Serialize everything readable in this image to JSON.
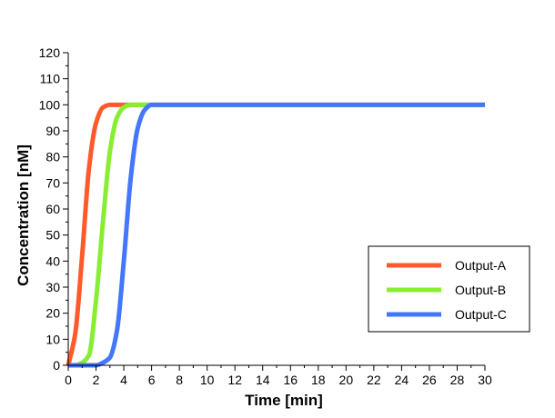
{
  "chart_data": {
    "type": "line",
    "xlabel": "Time [min]",
    "ylabel": "Concentration [nM]",
    "xlim": [
      0,
      30
    ],
    "ylim": [
      0,
      120
    ],
    "xticks": [
      0,
      2,
      4,
      6,
      8,
      10,
      12,
      14,
      16,
      18,
      20,
      22,
      24,
      26,
      28,
      30
    ],
    "yticks": [
      0,
      10,
      20,
      30,
      40,
      50,
      60,
      70,
      80,
      90,
      100,
      110,
      120
    ],
    "grid": false,
    "legend_position": "right-middle",
    "x": [
      0,
      0.5,
      1,
      1.5,
      2,
      2.5,
      3,
      3.5,
      4,
      4.5,
      5,
      5.5,
      6,
      6.5,
      7,
      8,
      10,
      15,
      20,
      25,
      30
    ],
    "series": [
      {
        "name": "Output-A",
        "color": "#ff5a2a",
        "values": [
          0,
          12,
          42,
          76,
          93,
          99,
          100,
          100,
          100,
          100,
          100,
          100,
          100,
          100,
          100,
          100,
          100,
          100,
          100,
          100,
          100
        ]
      },
      {
        "name": "Output-B",
        "color": "#88ee33",
        "values": [
          0,
          0,
          1,
          4,
          25,
          55,
          82,
          95,
          99,
          100,
          100,
          100,
          100,
          100,
          100,
          100,
          100,
          100,
          100,
          100,
          100
        ]
      },
      {
        "name": "Output-C",
        "color": "#4477ff",
        "values": [
          0,
          0,
          0,
          0,
          0,
          1,
          3,
          13,
          40,
          72,
          91,
          98,
          100,
          100,
          100,
          100,
          100,
          100,
          100,
          100,
          100
        ]
      }
    ]
  }
}
